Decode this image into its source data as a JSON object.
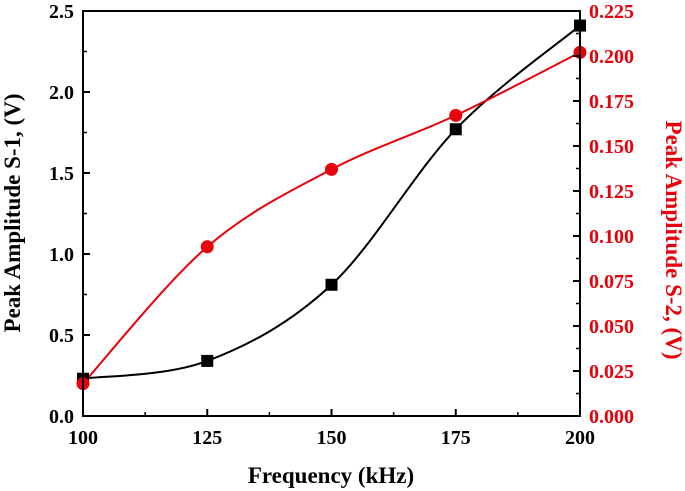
{
  "chart_data": {
    "type": "line",
    "xlabel": "Frequency (kHz)",
    "ylabel_left": "Peak Amplitude S-1, (V)",
    "ylabel_right": "Peak Amplitude S-2, (V)",
    "xlim": [
      100,
      200
    ],
    "ylim_left": [
      0.0,
      2.5
    ],
    "ylim_right": [
      0.0,
      0.225
    ],
    "x_ticks": [
      "100",
      "125",
      "150",
      "175",
      "200"
    ],
    "y_left_ticks": [
      "0.0",
      "0.5",
      "1.0",
      "1.5",
      "2.0",
      "2.5"
    ],
    "y_right_ticks": [
      "0.000",
      "0.025",
      "0.050",
      "0.075",
      "0.100",
      "0.125",
      "0.150",
      "0.175",
      "0.200",
      "0.225"
    ],
    "grid": false,
    "series": [
      {
        "name": "S-1",
        "axis": "left",
        "marker": "square",
        "color": "#000000",
        "x": [
          100,
          125,
          150,
          175,
          200
        ],
        "values": [
          0.23,
          0.34,
          0.81,
          1.77,
          2.41
        ]
      },
      {
        "name": "S-2",
        "axis": "right",
        "marker": "circle",
        "color": "#e8000b",
        "x": [
          100,
          125,
          150,
          175,
          200
        ],
        "values": [
          0.018,
          0.094,
          0.137,
          0.167,
          0.202
        ]
      }
    ]
  }
}
